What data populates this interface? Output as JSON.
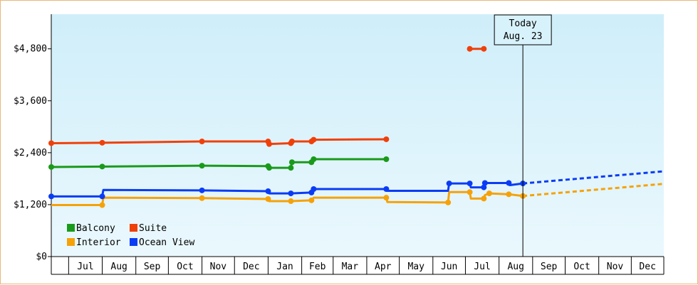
{
  "chart_data": {
    "type": "line",
    "y_ticks": [
      "$0",
      "$1,200",
      "$2,400",
      "$3,600",
      "$4,800"
    ],
    "y_tick_values": [
      0,
      1200,
      2400,
      3600,
      4800
    ],
    "ylim": [
      0,
      5600
    ],
    "x_months": [
      "Jul",
      "Aug",
      "Sep",
      "Oct",
      "Nov",
      "Dec",
      "Jan",
      "Feb",
      "Mar",
      "Apr",
      "May",
      "Jun",
      "Jul",
      "Aug",
      "Sep",
      "Oct",
      "Nov",
      "Dec"
    ],
    "xlim": [
      "2023-06-15",
      "2024-12-31"
    ],
    "today": {
      "line1": "Today",
      "line2": "Aug. 23",
      "date": "2024-08-23"
    },
    "legend_placement": "bottom-left",
    "colors": {
      "Balcony": "#1a9a1a",
      "Suite": "#f0400a",
      "Interior": "#f5a20a",
      "Ocean View": "#0a3cf5",
      "plot_top": "#cfeefa",
      "plot_bottom": "#eaf8fd"
    },
    "series": [
      {
        "name": "Balcony",
        "points": [
          [
            "2023-06-15",
            2070
          ],
          [
            "2023-08-01",
            2080
          ],
          [
            "2023-11-01",
            2100
          ],
          [
            "2024-01-01",
            2090
          ],
          [
            "2024-01-02",
            2050
          ],
          [
            "2024-01-22",
            2050
          ],
          [
            "2024-01-23",
            2180
          ],
          [
            "2024-02-10",
            2180
          ],
          [
            "2024-02-12",
            2250
          ],
          [
            "2024-04-19",
            2250
          ]
        ]
      },
      {
        "name": "Suite",
        "points": [
          [
            "2023-06-15",
            2620
          ],
          [
            "2023-08-01",
            2630
          ],
          [
            "2023-11-01",
            2660
          ],
          [
            "2024-01-01",
            2660
          ],
          [
            "2024-01-02",
            2600
          ],
          [
            "2024-01-22",
            2620
          ],
          [
            "2024-01-23",
            2660
          ],
          [
            "2024-02-10",
            2660
          ],
          [
            "2024-02-12",
            2700
          ],
          [
            "2024-04-19",
            2710
          ]
        ]
      },
      {
        "name": "Suite",
        "points": [
          [
            "2024-07-05",
            4800
          ],
          [
            "2024-07-18",
            4800
          ]
        ]
      },
      {
        "name": "Interior",
        "points": [
          [
            "2023-06-15",
            1190
          ],
          [
            "2023-08-01",
            1190
          ],
          [
            "2023-08-02",
            1360
          ],
          [
            "2023-11-01",
            1350
          ],
          [
            "2024-01-01",
            1330
          ],
          [
            "2024-01-02",
            1280
          ],
          [
            "2024-01-22",
            1280
          ],
          [
            "2024-02-10",
            1300
          ],
          [
            "2024-02-12",
            1360
          ],
          [
            "2024-04-19",
            1360
          ],
          [
            "2024-04-20",
            1260
          ],
          [
            "2024-06-15",
            1250
          ],
          [
            "2024-06-16",
            1490
          ],
          [
            "2024-07-05",
            1490
          ],
          [
            "2024-07-06",
            1340
          ],
          [
            "2024-07-18",
            1340
          ],
          [
            "2024-07-19",
            1420
          ],
          [
            "2024-07-23",
            1460
          ],
          [
            "2024-08-10",
            1440
          ],
          [
            "2024-08-23",
            1400
          ]
        ]
      },
      {
        "name": "Ocean View",
        "points": [
          [
            "2023-06-15",
            1390
          ],
          [
            "2023-08-01",
            1390
          ],
          [
            "2023-08-02",
            1540
          ],
          [
            "2023-11-01",
            1530
          ],
          [
            "2024-01-01",
            1510
          ],
          [
            "2024-01-02",
            1460
          ],
          [
            "2024-01-22",
            1460
          ],
          [
            "2024-02-10",
            1480
          ],
          [
            "2024-02-12",
            1560
          ],
          [
            "2024-04-19",
            1560
          ],
          [
            "2024-04-20",
            1520
          ],
          [
            "2024-06-15",
            1520
          ],
          [
            "2024-06-16",
            1690
          ],
          [
            "2024-07-05",
            1690
          ],
          [
            "2024-07-06",
            1600
          ],
          [
            "2024-07-18",
            1600
          ],
          [
            "2024-07-19",
            1700
          ],
          [
            "2024-08-10",
            1700
          ],
          [
            "2024-08-11",
            1650
          ],
          [
            "2024-08-23",
            1690
          ]
        ]
      }
    ],
    "projections": [
      {
        "name": "Ocean View",
        "points": [
          [
            "2024-08-23",
            1690
          ],
          [
            "2024-12-31",
            1970
          ]
        ]
      },
      {
        "name": "Interior",
        "points": [
          [
            "2024-08-23",
            1400
          ],
          [
            "2024-12-31",
            1680
          ]
        ]
      }
    ],
    "markers": {
      "Balcony": [
        "2023-06-15",
        "2023-08-01",
        "2023-11-01",
        "2024-01-01",
        "2024-01-02",
        "2024-01-22",
        "2024-01-23",
        "2024-02-10",
        "2024-02-12",
        "2024-04-19"
      ],
      "Suite": [
        "2023-06-15",
        "2023-08-01",
        "2023-11-01",
        "2024-01-01",
        "2024-01-02",
        "2024-01-22",
        "2024-01-23",
        "2024-02-10",
        "2024-02-12",
        "2024-04-19",
        "2024-07-05",
        "2024-07-18"
      ],
      "Interior": [
        "2023-08-01",
        "2023-11-01",
        "2024-01-01",
        "2024-01-22",
        "2024-02-10",
        "2024-04-19",
        "2024-06-15",
        "2024-07-05",
        "2024-07-18",
        "2024-07-23",
        "2024-08-10",
        "2024-08-23"
      ],
      "Ocean View": [
        "2023-06-15",
        "2023-08-01",
        "2023-11-01",
        "2024-01-01",
        "2024-01-22",
        "2024-02-10",
        "2024-02-12",
        "2024-04-19",
        "2024-06-16",
        "2024-07-05",
        "2024-07-18",
        "2024-07-19",
        "2024-08-10",
        "2024-08-23"
      ]
    },
    "legend": [
      [
        "Balcony",
        "Suite"
      ],
      [
        "Interior",
        "Ocean View"
      ]
    ]
  }
}
